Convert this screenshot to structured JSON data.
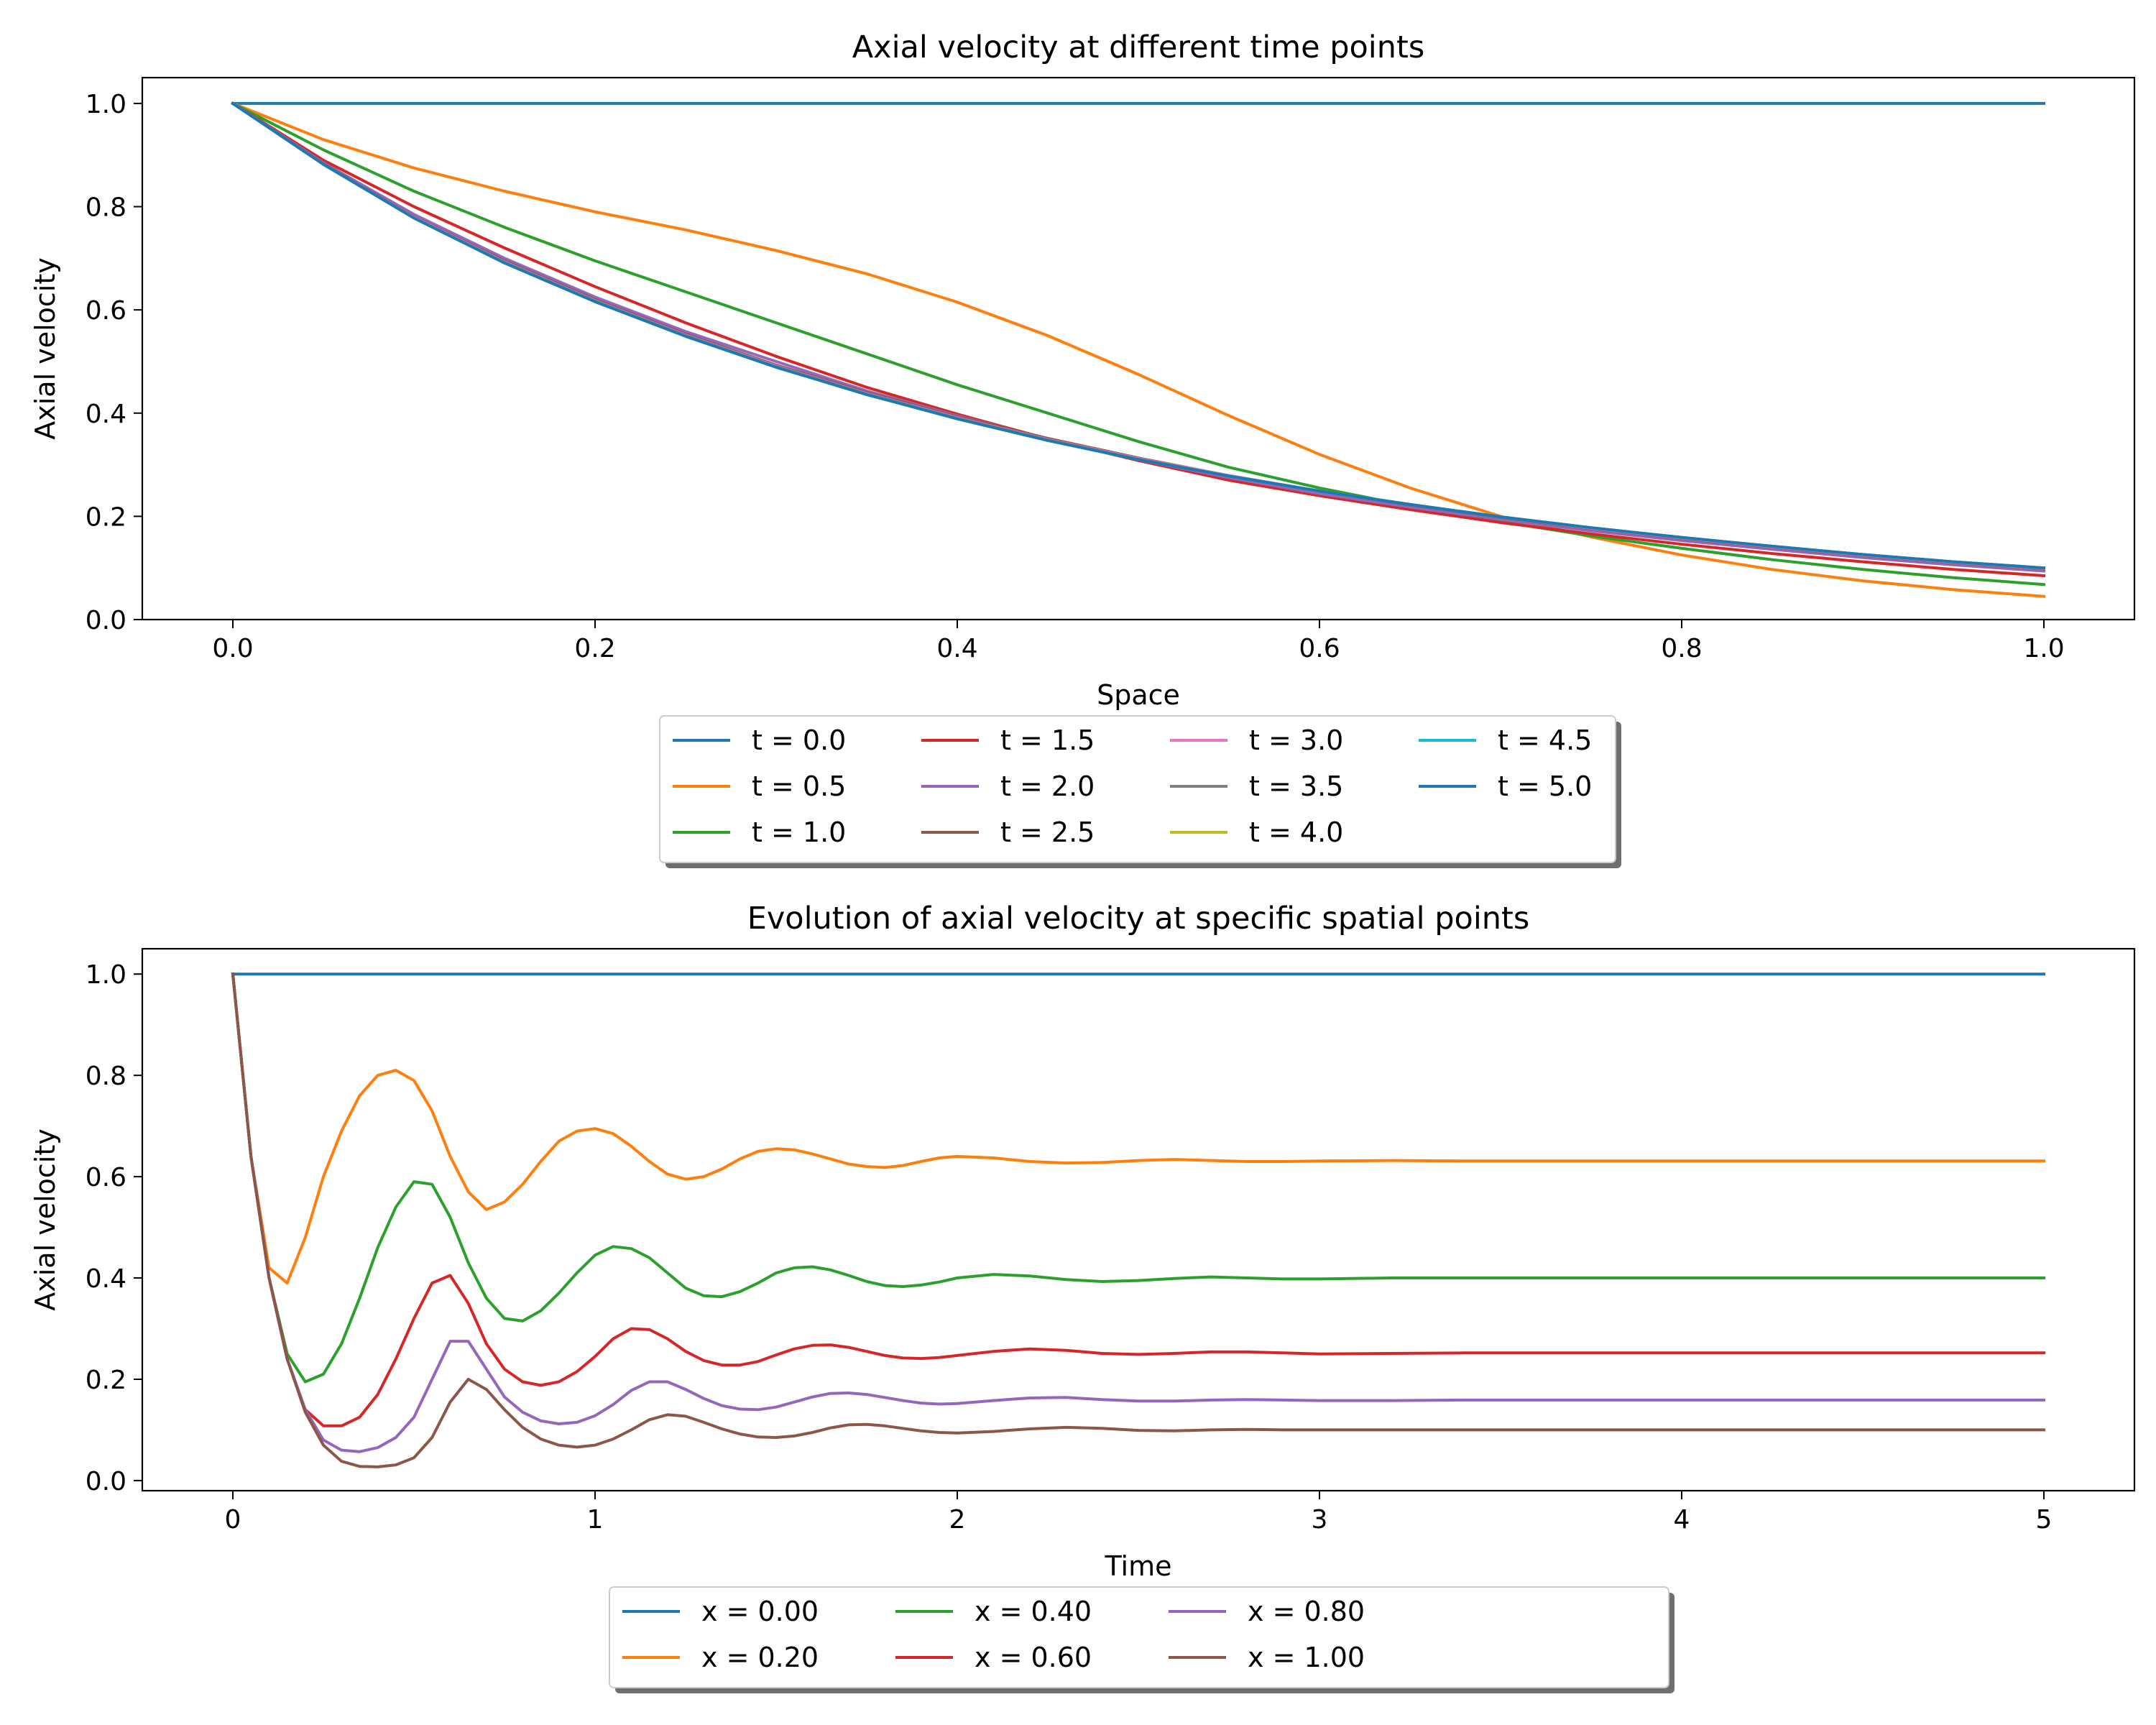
{
  "chart_data": [
    {
      "type": "line",
      "title": "Axial velocity at different time points",
      "xlabel": "Space",
      "ylabel": "Axial velocity",
      "xlim": [
        -0.05,
        1.05
      ],
      "ylim": [
        0.0,
        1.05
      ],
      "xticks": [
        0.0,
        0.2,
        0.4,
        0.6,
        0.8,
        1.0
      ],
      "xtick_labels": [
        "0.0",
        "0.2",
        "0.4",
        "0.6",
        "0.8",
        "1.0"
      ],
      "yticks": [
        0.0,
        0.2,
        0.4,
        0.6,
        0.8,
        1.0
      ],
      "ytick_labels": [
        "0.0",
        "0.2",
        "0.4",
        "0.6",
        "0.8",
        "1.0"
      ],
      "grid": false,
      "legend": {
        "placement": "below",
        "columns": 4
      },
      "x": [
        0.0,
        0.05,
        0.1,
        0.15,
        0.2,
        0.25,
        0.3,
        0.35,
        0.4,
        0.45,
        0.5,
        0.55,
        0.6,
        0.65,
        0.7,
        0.75,
        0.8,
        0.85,
        0.9,
        0.95,
        1.0
      ],
      "series": [
        {
          "name": "t = 0.0",
          "color": "#1f77b4",
          "values": [
            1.0,
            1.0,
            1.0,
            1.0,
            1.0,
            1.0,
            1.0,
            1.0,
            1.0,
            1.0,
            1.0,
            1.0,
            1.0,
            1.0,
            1.0,
            1.0,
            1.0,
            1.0,
            1.0,
            1.0,
            1.0
          ]
        },
        {
          "name": "t = 0.5",
          "color": "#ff7f0e",
          "values": [
            1.0,
            0.93,
            0.875,
            0.83,
            0.79,
            0.755,
            0.715,
            0.67,
            0.615,
            0.55,
            0.475,
            0.395,
            0.32,
            0.255,
            0.2,
            0.16,
            0.125,
            0.097,
            0.075,
            0.058,
            0.045
          ]
        },
        {
          "name": "t = 1.0",
          "color": "#2ca02c",
          "values": [
            1.0,
            0.91,
            0.83,
            0.76,
            0.695,
            0.635,
            0.575,
            0.515,
            0.455,
            0.4,
            0.345,
            0.295,
            0.255,
            0.22,
            0.19,
            0.162,
            0.138,
            0.116,
            0.097,
            0.081,
            0.068
          ]
        },
        {
          "name": "t = 1.5",
          "color": "#d62728",
          "values": [
            1.0,
            0.89,
            0.8,
            0.72,
            0.645,
            0.575,
            0.51,
            0.45,
            0.398,
            0.35,
            0.308,
            0.27,
            0.24,
            0.213,
            0.188,
            0.166,
            0.146,
            0.128,
            0.112,
            0.097,
            0.085
          ]
        },
        {
          "name": "t = 2.0",
          "color": "#9467bd",
          "values": [
            1.0,
            0.885,
            0.785,
            0.7,
            0.625,
            0.558,
            0.5,
            0.443,
            0.395,
            0.35,
            0.31,
            0.275,
            0.244,
            0.218,
            0.194,
            0.172,
            0.153,
            0.136,
            0.12,
            0.106,
            0.094
          ]
        },
        {
          "name": "t = 2.5",
          "color": "#8c564b",
          "values": [
            1.0,
            0.883,
            0.78,
            0.695,
            0.62,
            0.553,
            0.493,
            0.44,
            0.393,
            0.351,
            0.313,
            0.279,
            0.249,
            0.222,
            0.198,
            0.176,
            0.157,
            0.14,
            0.124,
            0.11,
            0.098
          ]
        },
        {
          "name": "t = 3.0",
          "color": "#e377c2",
          "values": [
            1.0,
            0.882,
            0.779,
            0.693,
            0.618,
            0.551,
            0.491,
            0.438,
            0.391,
            0.349,
            0.312,
            0.279,
            0.249,
            0.223,
            0.199,
            0.177,
            0.158,
            0.141,
            0.125,
            0.111,
            0.099
          ]
        },
        {
          "name": "t = 3.5",
          "color": "#7f7f7f",
          "values": [
            1.0,
            0.882,
            0.778,
            0.692,
            0.617,
            0.55,
            0.49,
            0.437,
            0.39,
            0.348,
            0.311,
            0.278,
            0.249,
            0.223,
            0.199,
            0.178,
            0.159,
            0.142,
            0.126,
            0.112,
            0.1
          ]
        },
        {
          "name": "t = 4.0",
          "color": "#bcbd22",
          "values": [
            1.0,
            0.882,
            0.778,
            0.691,
            0.616,
            0.549,
            0.489,
            0.436,
            0.389,
            0.347,
            0.31,
            0.278,
            0.249,
            0.223,
            0.199,
            0.178,
            0.159,
            0.142,
            0.126,
            0.112,
            0.1
          ]
        },
        {
          "name": "t = 4.5",
          "color": "#17becf",
          "values": [
            1.0,
            0.882,
            0.778,
            0.691,
            0.616,
            0.549,
            0.489,
            0.436,
            0.389,
            0.347,
            0.31,
            0.278,
            0.249,
            0.223,
            0.199,
            0.178,
            0.159,
            0.142,
            0.126,
            0.112,
            0.1
          ]
        },
        {
          "name": "t = 5.0",
          "color": "#1f77b4",
          "values": [
            1.0,
            0.882,
            0.778,
            0.691,
            0.616,
            0.549,
            0.489,
            0.436,
            0.389,
            0.347,
            0.31,
            0.278,
            0.249,
            0.223,
            0.199,
            0.178,
            0.159,
            0.142,
            0.126,
            0.112,
            0.1
          ]
        }
      ]
    },
    {
      "type": "line",
      "title": "Evolution of axial velocity at specific spatial points",
      "xlabel": "Time",
      "ylabel": "Axial velocity",
      "xlim": [
        -0.25,
        5.25
      ],
      "ylim": [
        -0.02,
        1.05
      ],
      "xticks": [
        0,
        1,
        2,
        3,
        4,
        5
      ],
      "xtick_labels": [
        "0",
        "1",
        "2",
        "3",
        "4",
        "5"
      ],
      "yticks": [
        0.0,
        0.2,
        0.4,
        0.6,
        0.8,
        1.0
      ],
      "ytick_labels": [
        "0.0",
        "0.2",
        "0.4",
        "0.6",
        "0.8",
        "1.0"
      ],
      "grid": false,
      "legend": {
        "placement": "below",
        "columns": 4
      },
      "series": [
        {
          "name": "x = 0.00",
          "color": "#1f77b4",
          "x": [
            0,
            5
          ],
          "values": [
            1.0,
            1.0
          ]
        },
        {
          "name": "x = 0.20",
          "color": "#ff7f0e",
          "x": [
            0,
            0.05,
            0.1,
            0.15,
            0.2,
            0.25,
            0.3,
            0.35,
            0.4,
            0.45,
            0.5,
            0.55,
            0.6,
            0.65,
            0.7,
            0.75,
            0.8,
            0.85,
            0.9,
            0.95,
            1.0,
            1.05,
            1.1,
            1.15,
            1.2,
            1.25,
            1.3,
            1.35,
            1.4,
            1.45,
            1.5,
            1.55,
            1.6,
            1.65,
            1.7,
            1.75,
            1.8,
            1.85,
            1.9,
            1.95,
            2.0,
            2.1,
            2.2,
            2.3,
            2.4,
            2.5,
            2.6,
            2.7,
            2.8,
            2.9,
            3.0,
            3.2,
            3.4,
            3.6,
            3.8,
            4.0,
            4.5,
            5.0
          ],
          "values": [
            1.0,
            0.64,
            0.42,
            0.39,
            0.48,
            0.6,
            0.69,
            0.76,
            0.8,
            0.81,
            0.79,
            0.73,
            0.64,
            0.57,
            0.535,
            0.55,
            0.585,
            0.63,
            0.67,
            0.69,
            0.695,
            0.685,
            0.66,
            0.63,
            0.605,
            0.595,
            0.6,
            0.615,
            0.635,
            0.65,
            0.655,
            0.653,
            0.645,
            0.635,
            0.625,
            0.62,
            0.618,
            0.622,
            0.63,
            0.637,
            0.64,
            0.637,
            0.63,
            0.627,
            0.628,
            0.632,
            0.634,
            0.632,
            0.63,
            0.63,
            0.631,
            0.632,
            0.631,
            0.631,
            0.631,
            0.631,
            0.631,
            0.631
          ]
        },
        {
          "name": "x = 0.40",
          "color": "#2ca02c",
          "x": [
            0,
            0.05,
            0.1,
            0.15,
            0.2,
            0.25,
            0.3,
            0.35,
            0.4,
            0.45,
            0.5,
            0.55,
            0.6,
            0.65,
            0.7,
            0.75,
            0.8,
            0.85,
            0.9,
            0.95,
            1.0,
            1.05,
            1.1,
            1.15,
            1.2,
            1.25,
            1.3,
            1.35,
            1.4,
            1.45,
            1.5,
            1.55,
            1.6,
            1.65,
            1.7,
            1.75,
            1.8,
            1.85,
            1.9,
            1.95,
            2.0,
            2.1,
            2.2,
            2.3,
            2.4,
            2.5,
            2.6,
            2.7,
            2.8,
            2.9,
            3.0,
            3.2,
            3.4,
            3.6,
            3.8,
            4.0,
            4.5,
            5.0
          ],
          "values": [
            1.0,
            0.64,
            0.4,
            0.25,
            0.195,
            0.21,
            0.27,
            0.36,
            0.46,
            0.54,
            0.59,
            0.585,
            0.52,
            0.43,
            0.36,
            0.32,
            0.315,
            0.335,
            0.37,
            0.41,
            0.445,
            0.462,
            0.458,
            0.44,
            0.41,
            0.38,
            0.365,
            0.363,
            0.373,
            0.39,
            0.41,
            0.42,
            0.422,
            0.416,
            0.405,
            0.393,
            0.385,
            0.383,
            0.386,
            0.392,
            0.4,
            0.407,
            0.404,
            0.397,
            0.393,
            0.395,
            0.399,
            0.402,
            0.4,
            0.398,
            0.398,
            0.4,
            0.4,
            0.4,
            0.4,
            0.4,
            0.4,
            0.4
          ]
        },
        {
          "name": "x = 0.60",
          "color": "#d62728",
          "x": [
            0,
            0.05,
            0.1,
            0.15,
            0.2,
            0.25,
            0.3,
            0.35,
            0.4,
            0.45,
            0.5,
            0.55,
            0.6,
            0.65,
            0.7,
            0.75,
            0.8,
            0.85,
            0.9,
            0.95,
            1.0,
            1.05,
            1.1,
            1.15,
            1.2,
            1.25,
            1.3,
            1.35,
            1.4,
            1.45,
            1.5,
            1.55,
            1.6,
            1.65,
            1.7,
            1.75,
            1.8,
            1.85,
            1.9,
            1.95,
            2.0,
            2.1,
            2.2,
            2.3,
            2.4,
            2.5,
            2.6,
            2.7,
            2.8,
            2.9,
            3.0,
            3.2,
            3.4,
            3.6,
            3.8,
            4.0,
            4.5,
            5.0
          ],
          "values": [
            1.0,
            0.64,
            0.4,
            0.24,
            0.14,
            0.108,
            0.108,
            0.125,
            0.17,
            0.24,
            0.32,
            0.39,
            0.405,
            0.35,
            0.27,
            0.22,
            0.195,
            0.188,
            0.195,
            0.215,
            0.245,
            0.28,
            0.3,
            0.298,
            0.28,
            0.255,
            0.237,
            0.228,
            0.228,
            0.235,
            0.248,
            0.26,
            0.267,
            0.268,
            0.263,
            0.255,
            0.247,
            0.242,
            0.241,
            0.243,
            0.247,
            0.255,
            0.26,
            0.257,
            0.251,
            0.249,
            0.251,
            0.254,
            0.254,
            0.252,
            0.25,
            0.251,
            0.252,
            0.252,
            0.252,
            0.252,
            0.252,
            0.252
          ]
        },
        {
          "name": "x = 0.80",
          "color": "#9467bd",
          "x": [
            0,
            0.05,
            0.1,
            0.15,
            0.2,
            0.25,
            0.3,
            0.35,
            0.4,
            0.45,
            0.5,
            0.55,
            0.6,
            0.65,
            0.7,
            0.75,
            0.8,
            0.85,
            0.9,
            0.95,
            1.0,
            1.05,
            1.1,
            1.15,
            1.2,
            1.25,
            1.3,
            1.35,
            1.4,
            1.45,
            1.5,
            1.55,
            1.6,
            1.65,
            1.7,
            1.75,
            1.8,
            1.85,
            1.9,
            1.95,
            2.0,
            2.1,
            2.2,
            2.3,
            2.4,
            2.5,
            2.6,
            2.7,
            2.8,
            2.9,
            3.0,
            3.2,
            3.4,
            3.6,
            3.8,
            4.0,
            4.5,
            5.0
          ],
          "values": [
            1.0,
            0.64,
            0.4,
            0.24,
            0.14,
            0.08,
            0.06,
            0.057,
            0.065,
            0.085,
            0.125,
            0.2,
            0.275,
            0.275,
            0.22,
            0.165,
            0.135,
            0.118,
            0.112,
            0.115,
            0.128,
            0.15,
            0.178,
            0.195,
            0.195,
            0.18,
            0.162,
            0.148,
            0.141,
            0.14,
            0.145,
            0.155,
            0.165,
            0.172,
            0.173,
            0.17,
            0.164,
            0.158,
            0.153,
            0.151,
            0.152,
            0.158,
            0.163,
            0.164,
            0.16,
            0.157,
            0.157,
            0.159,
            0.16,
            0.159,
            0.158,
            0.158,
            0.159,
            0.159,
            0.159,
            0.159,
            0.159,
            0.159
          ]
        },
        {
          "name": "x = 1.00",
          "color": "#8c564b",
          "x": [
            0,
            0.05,
            0.1,
            0.15,
            0.2,
            0.25,
            0.3,
            0.35,
            0.4,
            0.45,
            0.5,
            0.55,
            0.6,
            0.65,
            0.7,
            0.75,
            0.8,
            0.85,
            0.9,
            0.95,
            1.0,
            1.05,
            1.1,
            1.15,
            1.2,
            1.25,
            1.3,
            1.35,
            1.4,
            1.45,
            1.5,
            1.55,
            1.6,
            1.65,
            1.7,
            1.75,
            1.8,
            1.85,
            1.9,
            1.95,
            2.0,
            2.1,
            2.2,
            2.3,
            2.4,
            2.5,
            2.6,
            2.7,
            2.8,
            2.9,
            3.0,
            3.2,
            3.4,
            3.6,
            3.8,
            4.0,
            4.5,
            5.0
          ],
          "values": [
            1.0,
            0.64,
            0.4,
            0.24,
            0.135,
            0.07,
            0.038,
            0.028,
            0.027,
            0.031,
            0.045,
            0.085,
            0.155,
            0.2,
            0.18,
            0.14,
            0.105,
            0.082,
            0.07,
            0.066,
            0.07,
            0.082,
            0.1,
            0.12,
            0.13,
            0.127,
            0.115,
            0.102,
            0.092,
            0.086,
            0.085,
            0.088,
            0.095,
            0.104,
            0.11,
            0.111,
            0.108,
            0.103,
            0.098,
            0.095,
            0.094,
            0.097,
            0.102,
            0.105,
            0.103,
            0.099,
            0.098,
            0.1,
            0.101,
            0.1,
            0.1,
            0.1,
            0.1,
            0.1,
            0.1,
            0.1,
            0.1,
            0.1
          ]
        }
      ]
    }
  ]
}
